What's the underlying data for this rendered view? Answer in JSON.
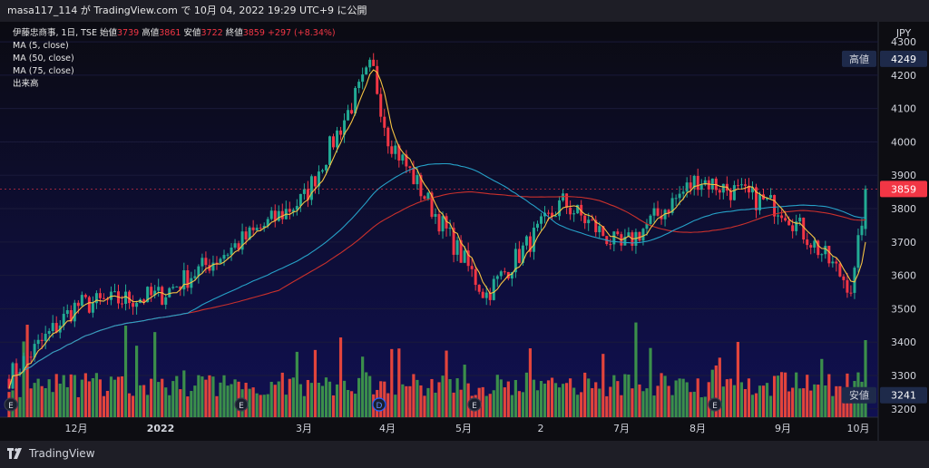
{
  "header": {
    "text": "masa117_114 が TradingView.com で 10月 04, 2022 19:29 UTC+9 に公開"
  },
  "legend": {
    "symbol": "伊藤忠商事, 1日, TSE",
    "open_label": "始値",
    "open": "3739",
    "high_label": "高値",
    "high": "3861",
    "low_label": "安値",
    "low": "3722",
    "close_label": "終値",
    "close": "3859",
    "change": "+297 (+8.34%)",
    "ma1": "MA (5, close)",
    "ma2": "MA (50, close)",
    "ma3": "MA (75, close)",
    "volume": "出来高"
  },
  "footer": {
    "brand": "TradingView"
  },
  "chart_data": {
    "type": "candlestick",
    "currency": "JPY",
    "y_ticks": [
      3200,
      3300,
      3400,
      3500,
      3600,
      3700,
      3800,
      3900,
      4000,
      4100,
      4200,
      4300
    ],
    "ylim": [
      3175,
      4360
    ],
    "x_labels": [
      "12月",
      "2022",
      "3月",
      "4月",
      "5月",
      "2",
      "7月",
      "8月",
      "9月",
      "10月"
    ],
    "markers": {
      "high": {
        "label": "高値",
        "value": "4249"
      },
      "last": {
        "value": "3859"
      },
      "low": {
        "label": "安値",
        "value": "3241"
      }
    },
    "events": [
      "E",
      "E",
      "D",
      "E",
      "E"
    ],
    "colors": {
      "up": "#22ab94",
      "down": "#f23645",
      "vol_up": "#3b8f4b",
      "vol_down": "#e2443c",
      "ma5": "#f5c242",
      "ma50": "#26a1c8",
      "ma75": "#c9302c",
      "background_top": "#0b0b12",
      "background_bottom": "#101052"
    },
    "close_path": [
      {
        "month": "2021-11",
        "close": 3290
      },
      {
        "month": "2021-12",
        "close": 3510
      },
      {
        "month": "2022-01",
        "close": 3540
      },
      {
        "month": "2022-02",
        "close": 3690
      },
      {
        "month": "2022-03",
        "close": 3830
      },
      {
        "month": "2022-03-end",
        "close": 4230
      },
      {
        "month": "2022-04",
        "close": 4020
      },
      {
        "month": "2022-05",
        "close": 3540
      },
      {
        "month": "2022-06",
        "close": 3820
      },
      {
        "month": "2022-07",
        "close": 3680
      },
      {
        "month": "2022-08",
        "close": 3890
      },
      {
        "month": "2022-09",
        "close": 3800
      },
      {
        "month": "2022-09-end",
        "close": 3560
      },
      {
        "month": "2022-10",
        "close": 3859
      }
    ]
  }
}
